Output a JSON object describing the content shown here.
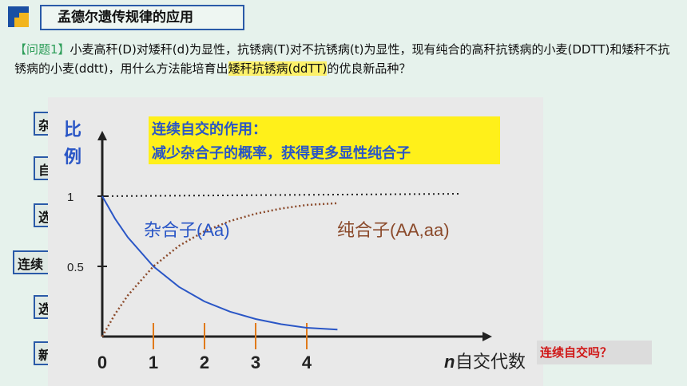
{
  "header": {
    "title": "孟德尔遗传规律的应用"
  },
  "problem": {
    "tag": "【问题1】",
    "text_a": "小麦高秆(D)对矮秆(d)为显性，抗锈病(T)对不抗锈病(t)为显性，现有纯合的高秆抗锈病的小麦(DDTT)和矮秆不抗锈病的小麦(ddtt)，用什么方法能培育出",
    "highlight": "矮秆抗锈病(ddTT)",
    "text_b": "的优良新品种？"
  },
  "left_tabs": [
    "杂",
    "自",
    "选",
    "连续",
    "选",
    "新"
  ],
  "side_question": "连续自交吗？",
  "chart_data": {
    "type": "line",
    "ylabel": "比例",
    "xlabel_italic": "n",
    "xlabel": "自交代数",
    "x_ticks": [
      "0",
      "1",
      "2",
      "3",
      "4"
    ],
    "y_ticks": [
      "1",
      "0.5"
    ],
    "annotation_line1": "连续自交的作用：",
    "annotation_line2": "减少杂合子的概率，获得更多显性纯合子",
    "series": [
      {
        "name": "杂合子(Aa)",
        "color": "#2a56c6",
        "style": "solid",
        "x": [
          0,
          0.25,
          0.5,
          1,
          1.5,
          2,
          2.5,
          3,
          3.5,
          4,
          4.6
        ],
        "y": [
          1,
          0.84,
          0.707,
          0.5,
          0.354,
          0.25,
          0.177,
          0.125,
          0.088,
          0.0625,
          0.05
        ]
      },
      {
        "name": "纯合子(AA,aa)",
        "color": "#8b4a2b",
        "style": "dotted",
        "x": [
          0,
          0.25,
          0.5,
          1,
          1.5,
          2,
          2.5,
          3,
          3.5,
          4,
          4.6
        ],
        "y": [
          0,
          0.16,
          0.293,
          0.5,
          0.646,
          0.75,
          0.823,
          0.875,
          0.912,
          0.9375,
          0.95
        ]
      }
    ],
    "reference_line": {
      "y": 1,
      "style": "dotted",
      "color": "#222"
    },
    "xlim": [
      0,
      7
    ],
    "ylim": [
      0,
      1.7
    ]
  }
}
